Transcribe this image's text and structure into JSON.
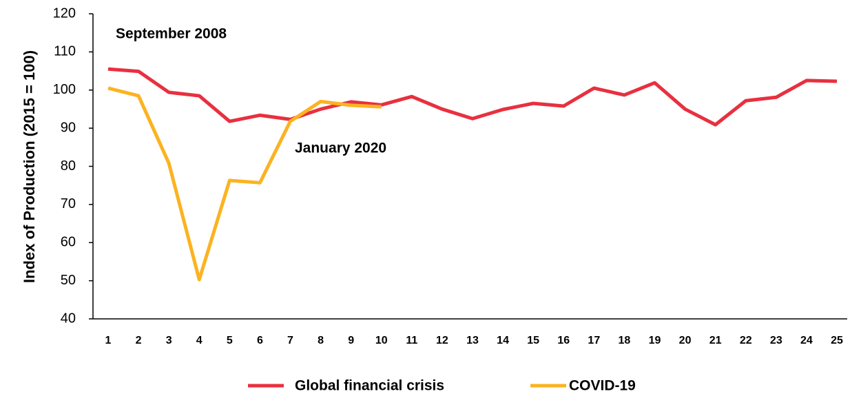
{
  "chart_data": {
    "type": "line",
    "ylabel": "Index of Production (2015 = 100)",
    "annotations": [
      "September 2008",
      "January 2020"
    ],
    "categories": [
      1,
      2,
      3,
      4,
      5,
      6,
      7,
      8,
      9,
      10,
      11,
      12,
      13,
      14,
      15,
      16,
      17,
      18,
      19,
      20,
      21,
      22,
      23,
      24,
      25
    ],
    "series": [
      {
        "name": "Global financial crisis",
        "color": "#e8303f",
        "values": [
          105.5,
          104.9,
          99.4,
          98.5,
          91.8,
          93.4,
          92.3,
          95,
          96.9,
          96.1,
          98.3,
          95,
          92.5,
          94.9,
          96.5,
          95.8,
          100.5,
          98.7,
          101.9,
          95,
          90.9,
          97.2,
          98.1,
          102.5,
          102.3
        ]
      },
      {
        "name": "COVID-19",
        "color": "#fbb321",
        "values": [
          100.5,
          98.5,
          80.8,
          50.3,
          76.3,
          75.7,
          91.8,
          97,
          96,
          95.6,
          null,
          null,
          null,
          null,
          null,
          null,
          null,
          null,
          null,
          null,
          null,
          null,
          null,
          null,
          null
        ]
      }
    ],
    "ylim": [
      40,
      120
    ],
    "yticks": [
      40,
      50,
      60,
      70,
      80,
      90,
      100,
      110,
      120
    ],
    "grid": false,
    "legend": "bottom"
  }
}
